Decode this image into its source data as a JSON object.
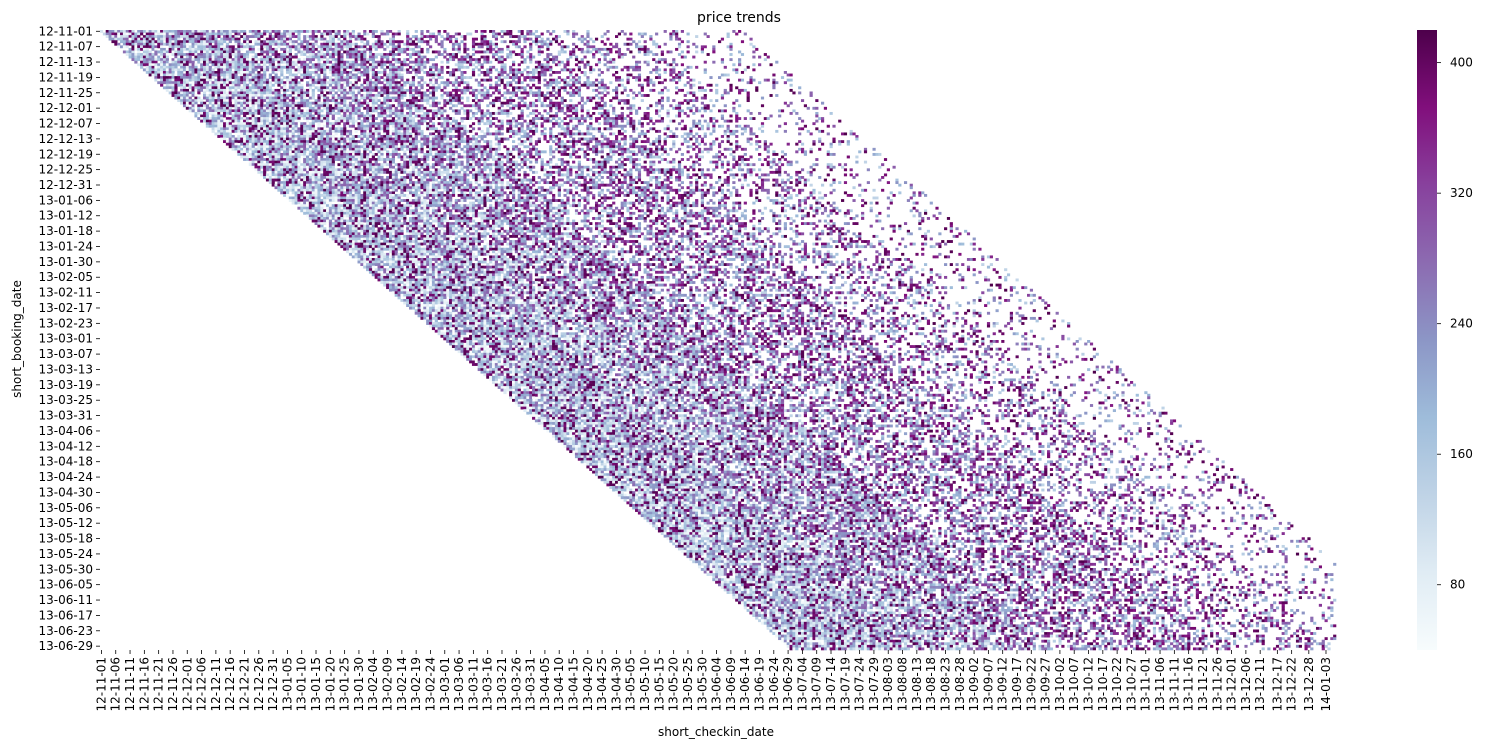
{
  "chart_data": {
    "type": "heatmap",
    "title": "price trends",
    "xlabel": "short_checkin_date",
    "ylabel": "short_booking_date",
    "x_range": [
      "12-11-01",
      "14-01-06"
    ],
    "y_range": [
      "12-11-01",
      "13-06-30"
    ],
    "x_tick_labels": [
      "12-11-01",
      "12-11-06",
      "12-11-11",
      "12-11-16",
      "12-11-21",
      "12-11-26",
      "12-12-01",
      "12-12-06",
      "12-12-11",
      "12-12-16",
      "12-12-21",
      "12-12-26",
      "12-12-31",
      "13-01-05",
      "13-01-10",
      "13-01-15",
      "13-01-20",
      "13-01-25",
      "13-01-30",
      "13-02-04",
      "13-02-09",
      "13-02-14",
      "13-02-19",
      "13-02-24",
      "13-03-01",
      "13-03-06",
      "13-03-11",
      "13-03-16",
      "13-03-21",
      "13-03-26",
      "13-03-31",
      "13-04-05",
      "13-04-10",
      "13-04-15",
      "13-04-20",
      "13-04-25",
      "13-04-30",
      "13-05-05",
      "13-05-10",
      "13-05-15",
      "13-05-20",
      "13-05-25",
      "13-05-30",
      "13-06-04",
      "13-06-09",
      "13-06-14",
      "13-06-19",
      "13-06-24",
      "13-06-29",
      "13-07-04",
      "13-07-09",
      "13-07-14",
      "13-07-19",
      "13-07-24",
      "13-07-29",
      "13-08-03",
      "13-08-08",
      "13-08-13",
      "13-08-18",
      "13-08-23",
      "13-08-28",
      "13-09-02",
      "13-09-07",
      "13-09-12",
      "13-09-17",
      "13-09-22",
      "13-09-27",
      "13-10-02",
      "13-10-07",
      "13-10-12",
      "13-10-17",
      "13-10-22",
      "13-10-27",
      "13-11-01",
      "13-11-06",
      "13-11-11",
      "13-11-16",
      "13-11-21",
      "13-11-26",
      "13-12-01",
      "13-12-06",
      "13-12-11",
      "13-12-17",
      "13-12-22",
      "13-12-28",
      "14-01-03"
    ],
    "y_tick_labels": [
      "12-11-01",
      "12-11-07",
      "12-11-13",
      "12-11-19",
      "12-11-25",
      "12-12-01",
      "12-12-07",
      "12-12-13",
      "12-12-19",
      "12-12-25",
      "12-12-31",
      "13-01-06",
      "13-01-12",
      "13-01-18",
      "13-01-24",
      "13-01-30",
      "13-02-05",
      "13-02-11",
      "13-02-17",
      "13-02-23",
      "13-03-01",
      "13-03-07",
      "13-03-13",
      "13-03-19",
      "13-03-25",
      "13-03-31",
      "13-04-06",
      "13-04-12",
      "13-04-18",
      "13-04-24",
      "13-04-30",
      "13-05-06",
      "13-05-12",
      "13-05-18",
      "13-05-24",
      "13-05-30",
      "13-06-05",
      "13-06-11",
      "13-06-17",
      "13-06-23",
      "13-06-29"
    ],
    "colorbar": {
      "colormap": "BuPu",
      "vmin": 40,
      "vmax": 420,
      "ticks": [
        80,
        160,
        240,
        320,
        400
      ],
      "tick_labels": [
        "80",
        "160",
        "240",
        "320",
        "400"
      ]
    },
    "structure": "upper-triangular: cells exist only where check-in date >= booking date; sparse beyond ~200 days lead time",
    "colors": {
      "low": "#f7fcfd",
      "mid": "#8c96c6",
      "high": "#4d004b"
    }
  }
}
